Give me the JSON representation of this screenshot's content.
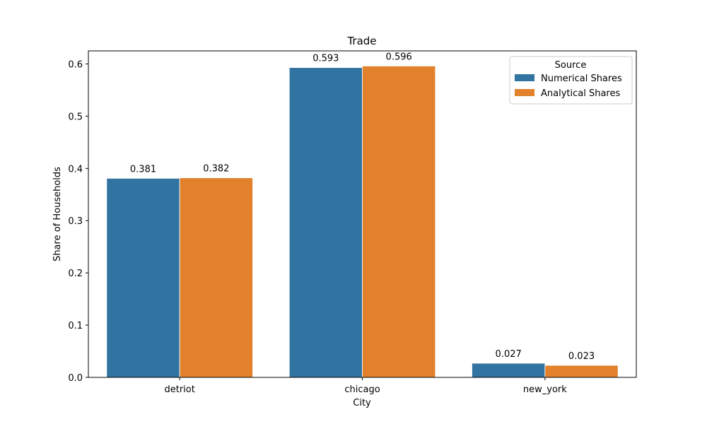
{
  "chart_data": {
    "type": "bar",
    "title": "Trade",
    "xlabel": "City",
    "ylabel": "Share of Households",
    "categories": [
      "detriot",
      "chicago",
      "new_york"
    ],
    "series": [
      {
        "name": "Numerical Shares",
        "values": [
          0.381,
          0.593,
          0.027
        ],
        "labels": [
          "0.381",
          "0.593",
          "0.027"
        ],
        "color": "#3274a1"
      },
      {
        "name": "Analytical Shares",
        "values": [
          0.382,
          0.596,
          0.023
        ],
        "labels": [
          "0.382",
          "0.596",
          "0.023"
        ],
        "color": "#e1812c"
      }
    ],
    "ylim": [
      0,
      0.625
    ],
    "yticks": [
      0.0,
      0.1,
      0.2,
      0.3,
      0.4,
      0.5,
      0.6
    ],
    "ytick_labels": [
      "0.0",
      "0.1",
      "0.2",
      "0.3",
      "0.4",
      "0.5",
      "0.6"
    ],
    "grid": false,
    "legend": {
      "title": "Source",
      "placement": "top-right"
    }
  }
}
